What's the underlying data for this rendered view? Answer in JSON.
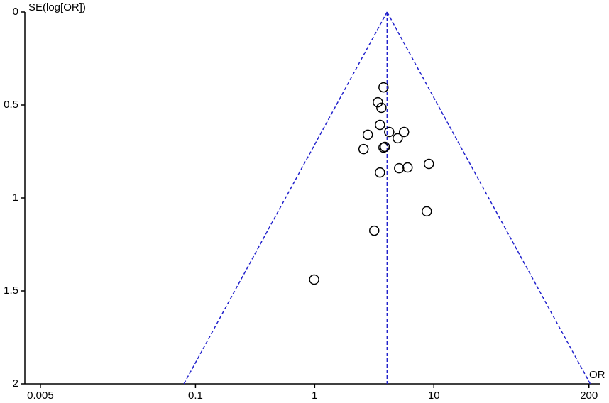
{
  "chart_data": {
    "type": "scatter",
    "y_label": "SE(log[OR])",
    "x_label": "OR",
    "x": [
      3.78,
      3.39,
      3.63,
      3.53,
      4.22,
      5.62,
      2.79,
      4.97,
      3.88,
      3.78,
      2.57,
      9.08,
      6.02,
      5.11,
      3.53,
      8.72,
      3.16,
      0.99
    ],
    "values": [
      0.405,
      0.485,
      0.515,
      0.607,
      0.645,
      0.645,
      0.66,
      0.679,
      0.725,
      0.729,
      0.737,
      0.817,
      0.836,
      0.84,
      0.863,
      1.072,
      1.176,
      1.439
    ],
    "color": "#000000",
    "funnel": {
      "center": 4.05,
      "lower_at_ymax": 0.08,
      "upper_at_ymax": 205,
      "color": "#2222cc"
    },
    "xlim": [
      0.0037,
      250
    ],
    "xticks": [
      0.005,
      0.1,
      1,
      10,
      200
    ],
    "log_x": true,
    "ylim": [
      0,
      2
    ],
    "yticks": [
      0,
      0.5,
      1,
      1.5,
      2
    ],
    "y_inverted": true,
    "grid": false
  }
}
